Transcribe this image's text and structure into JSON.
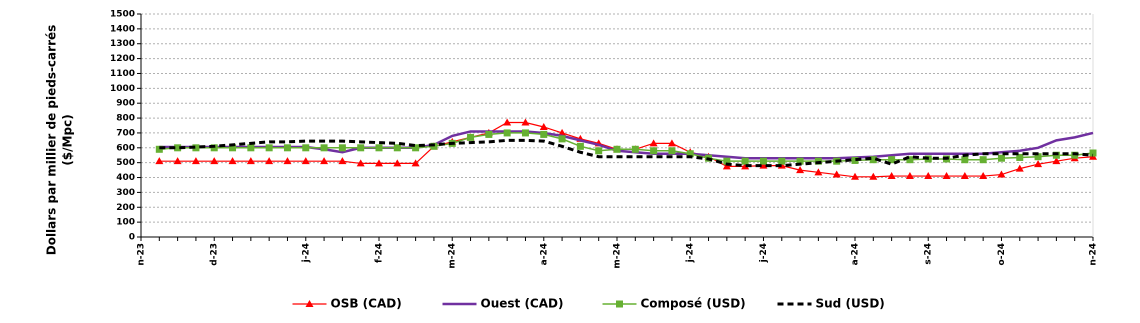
{
  "chart_data": {
    "type": "line",
    "ylabel": [
      "Dollars par millier de pieds-carrés",
      "($/Mpc)"
    ],
    "categories": [
      "n-23",
      null,
      null,
      null,
      "d-23",
      null,
      null,
      null,
      null,
      "j-24",
      null,
      null,
      null,
      "f-24",
      null,
      null,
      null,
      "m-24",
      null,
      null,
      null,
      null,
      "a-24",
      null,
      null,
      null,
      "m-24",
      null,
      null,
      null,
      "j-24",
      null,
      null,
      null,
      "j-24",
      null,
      null,
      null,
      null,
      "a-24",
      null,
      null,
      null,
      "s-24",
      null,
      null,
      null,
      "o-24",
      null,
      null,
      null,
      null,
      "n-24"
    ],
    "ylim": [
      0,
      1500
    ],
    "yticks": [
      0,
      100,
      200,
      300,
      400,
      500,
      600,
      700,
      800,
      900,
      1000,
      1100,
      1200,
      1300,
      1400,
      1500
    ],
    "grid": true,
    "series": [
      {
        "name": "OSB (CAD)",
        "color": "#ff0000",
        "marker": "triangle",
        "dash": false,
        "width": 1.2,
        "values": [
          null,
          510,
          510,
          510,
          510,
          510,
          510,
          510,
          510,
          510,
          510,
          510,
          495,
          495,
          495,
          495,
          610,
          640,
          670,
          700,
          770,
          770,
          740,
          700,
          660,
          630,
          590,
          590,
          630,
          630,
          570,
          540,
          475,
          475,
          480,
          480,
          450,
          435,
          420,
          405,
          405,
          410,
          410,
          410,
          410,
          410,
          410,
          420,
          460,
          490,
          510,
          530,
          540
        ]
      },
      {
        "name": "Ouest (CAD)",
        "color": "#7030a0",
        "marker": "none",
        "dash": false,
        "width": 2.5,
        "values": [
          null,
          605,
          605,
          605,
          605,
          605,
          605,
          605,
          605,
          605,
          590,
          570,
          600,
          600,
          600,
          600,
          620,
          680,
          710,
          710,
          710,
          710,
          700,
          680,
          650,
          620,
          580,
          570,
          560,
          560,
          560,
          550,
          540,
          530,
          530,
          530,
          530,
          530,
          530,
          535,
          540,
          550,
          560,
          560,
          560,
          560,
          560,
          570,
          580,
          600,
          650,
          670,
          700
        ]
      },
      {
        "name": "Composé (USD)",
        "color": "#66b032",
        "marker": "square",
        "dash": false,
        "width": 1.5,
        "values": [
          null,
          590,
          600,
          600,
          600,
          600,
          600,
          600,
          600,
          600,
          600,
          600,
          600,
          600,
          600,
          600,
          610,
          630,
          670,
          690,
          700,
          700,
          690,
          660,
          610,
          580,
          590,
          590,
          580,
          580,
          560,
          530,
          510,
          510,
          510,
          510,
          510,
          510,
          510,
          515,
          520,
          520,
          520,
          525,
          525,
          520,
          520,
          530,
          535,
          540,
          550,
          550,
          565
        ]
      },
      {
        "name": "Sud (USD)",
        "color": "#000000",
        "marker": "none",
        "dash": true,
        "width": 3,
        "values": [
          null,
          600,
          600,
          605,
          610,
          620,
          630,
          640,
          640,
          645,
          645,
          645,
          640,
          635,
          630,
          615,
          620,
          630,
          635,
          640,
          650,
          650,
          645,
          610,
          570,
          540,
          540,
          540,
          540,
          540,
          540,
          525,
          490,
          480,
          480,
          480,
          490,
          500,
          510,
          520,
          530,
          490,
          540,
          530,
          530,
          550,
          560,
          560,
          560,
          560,
          560,
          560,
          550
        ]
      }
    ]
  }
}
